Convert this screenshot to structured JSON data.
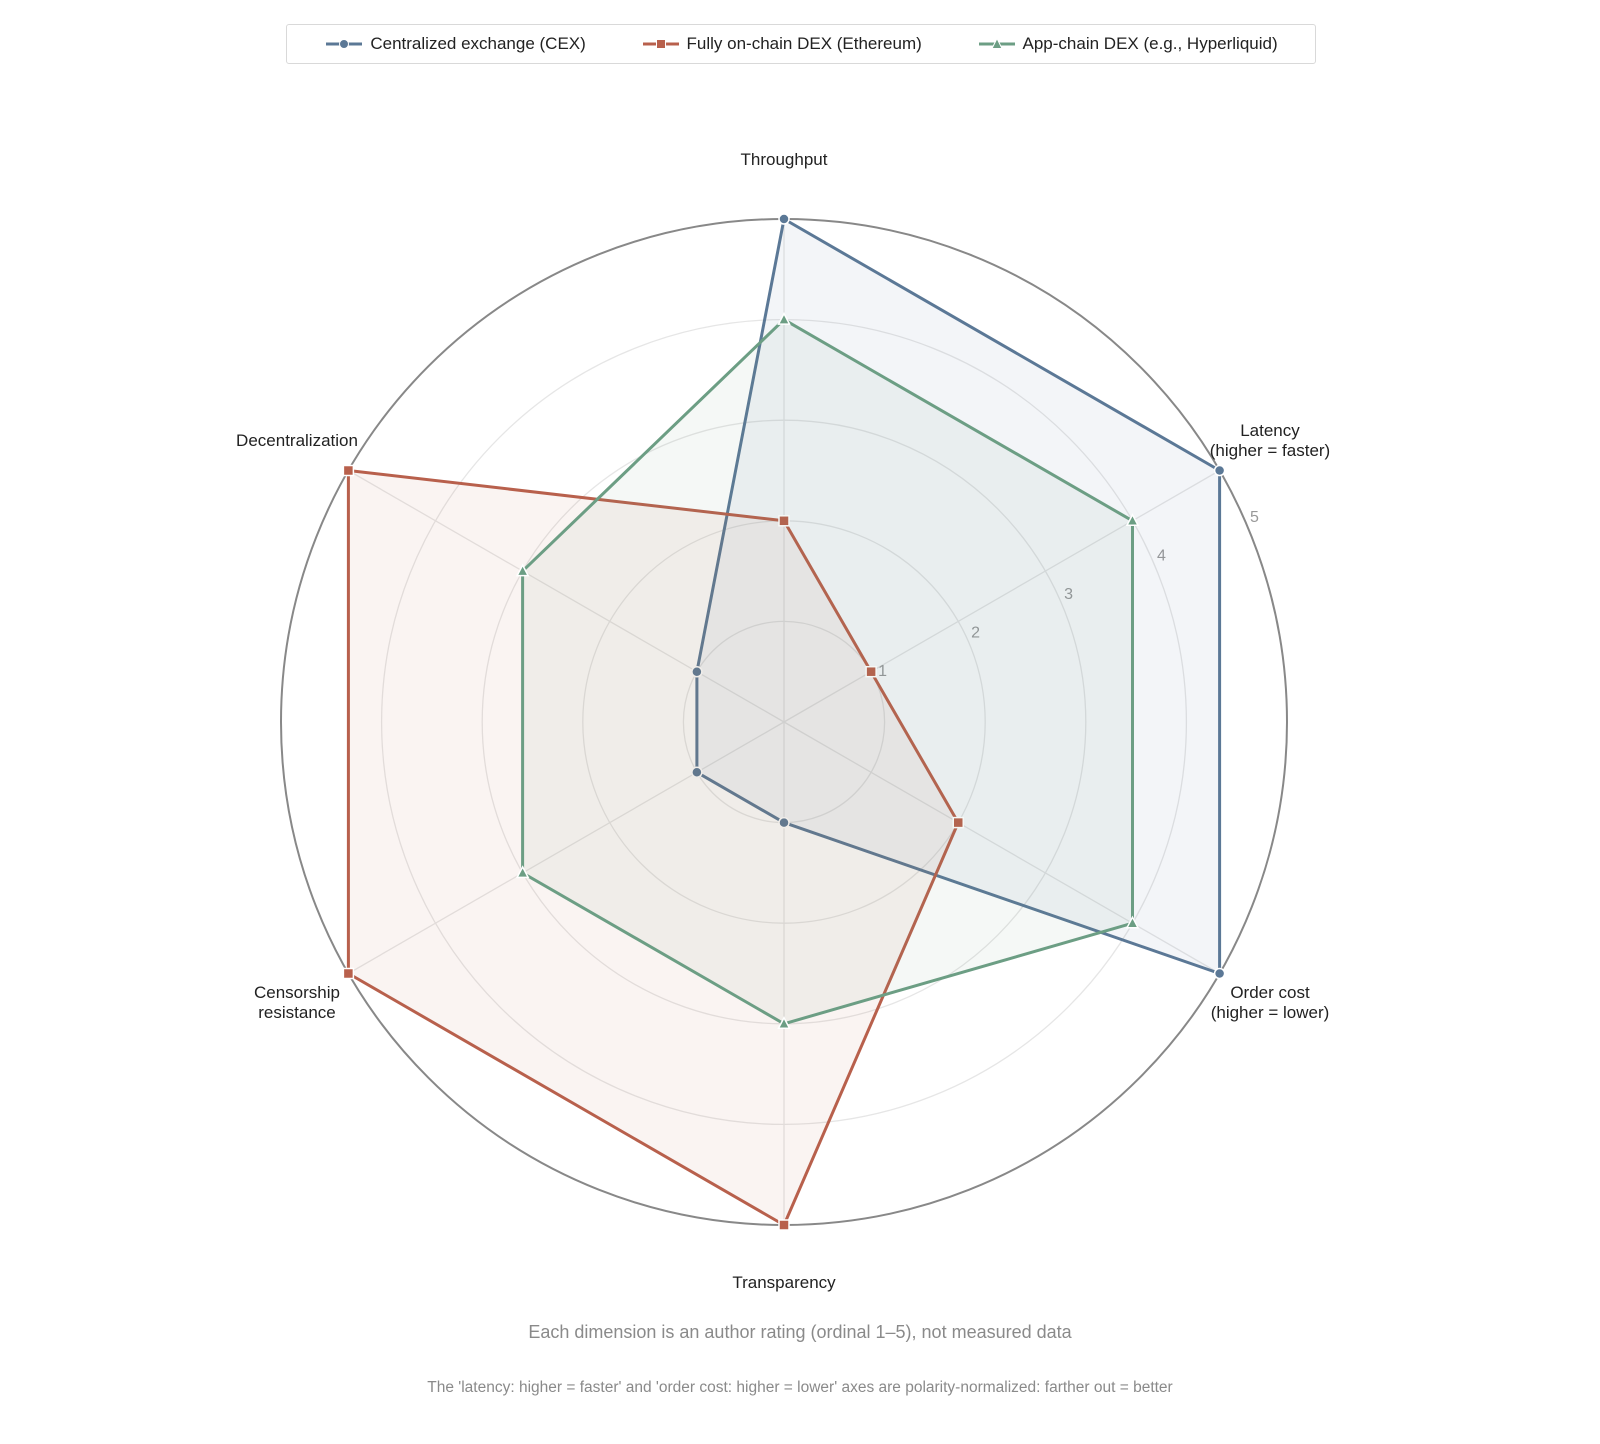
{
  "chart_data": {
    "type": "radar",
    "axes": [
      {
        "label": [
          "Throughput"
        ]
      },
      {
        "label": [
          "Latency",
          "(higher = faster)"
        ]
      },
      {
        "label": [
          "Order cost",
          "(higher = lower)"
        ]
      },
      {
        "label": [
          "Transparency"
        ]
      },
      {
        "label": [
          "Censorship",
          "resistance"
        ]
      },
      {
        "label": [
          "Decentralization"
        ]
      }
    ],
    "rlim": [
      0,
      5
    ],
    "r_ticks": [
      "1",
      "2",
      "3",
      "4",
      "5"
    ],
    "series": [
      {
        "name": "Centralized exchange (CEX)",
        "color": "#5b7896",
        "marker": "circle",
        "values": [
          5,
          5,
          5,
          1,
          1,
          1
        ]
      },
      {
        "name": "Fully on-chain DEX (Ethereum)",
        "color": "#b8604c",
        "marker": "square",
        "values": [
          2,
          1,
          2,
          5,
          5,
          5
        ]
      },
      {
        "name": "App-chain DEX (e.g., Hyperliquid)",
        "color": "#6c9e84",
        "marker": "triangle",
        "values": [
          4,
          4,
          4,
          3,
          3,
          3
        ]
      }
    ],
    "grid": true,
    "legend": "top-center",
    "notes": [
      "Each dimension is an author rating (ordinal 1–5), not measured data",
      "The 'latency: higher = faster' and 'order cost: higher = lower' axes are polarity-normalized: farther out = better"
    ]
  }
}
